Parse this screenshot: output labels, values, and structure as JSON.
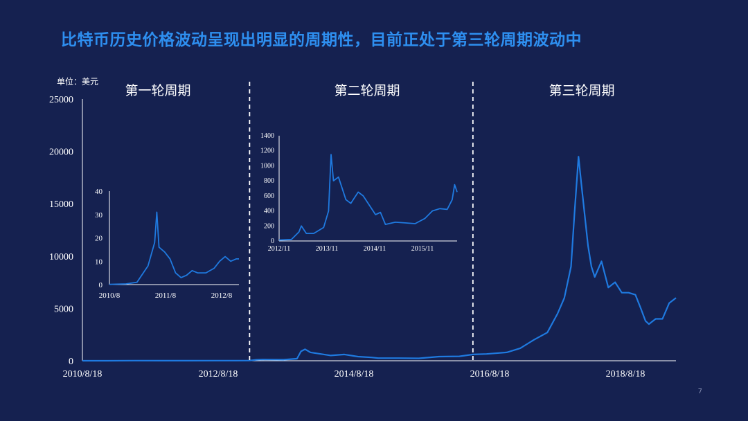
{
  "title": "比特币历史价格波动呈现出明显的周期性，目前正处于第三轮周期波动中",
  "page_number": "7",
  "colors": {
    "background": "#152150",
    "title": "#2e8ff0",
    "line": "#1f7ae0",
    "axis": "#ffffff"
  },
  "chart_data": [
    {
      "type": "line",
      "name": "main",
      "unit_label": "单位：美元",
      "x_ticks": [
        "2010/8/18",
        "2012/8/18",
        "2014/8/18",
        "2016/8/18",
        "2018/8/18"
      ],
      "y_ticks": [
        "0",
        "5000",
        "10000",
        "15000",
        "20000",
        "25000"
      ],
      "ylim": [
        0,
        25000
      ],
      "xlim": [
        2010.63,
        2019.4
      ],
      "cycle_labels": [
        "第一轮周期",
        "第二轮周期",
        "第三轮周期"
      ],
      "cycle_dividers": [
        2013.1,
        2016.4
      ],
      "x": [
        2010.63,
        2011.0,
        2011.4,
        2011.8,
        2012.2,
        2012.6,
        2012.9,
        2013.1,
        2013.2,
        2013.3,
        2013.4,
        2013.6,
        2013.8,
        2013.86,
        2013.92,
        2014.0,
        2014.1,
        2014.3,
        2014.5,
        2014.7,
        2014.9,
        2015.0,
        2015.3,
        2015.6,
        2015.9,
        2016.2,
        2016.4,
        2016.6,
        2016.9,
        2017.1,
        2017.3,
        2017.5,
        2017.65,
        2017.75,
        2017.85,
        2017.9,
        2017.96,
        2018.0,
        2018.05,
        2018.1,
        2018.15,
        2018.2,
        2018.3,
        2018.4,
        2018.5,
        2018.6,
        2018.7,
        2018.8,
        2018.88,
        2018.95,
        2019.0,
        2019.1,
        2019.2,
        2019.3,
        2019.4
      ],
      "y": [
        0,
        0,
        15,
        5,
        5,
        10,
        12,
        20,
        90,
        120,
        110,
        100,
        200,
        900,
        1100,
        800,
        700,
        500,
        600,
        400,
        320,
        250,
        250,
        230,
        400,
        420,
        600,
        650,
        800,
        1200,
        2000,
        2700,
        4500,
        6000,
        9000,
        14000,
        19500,
        17000,
        14000,
        11000,
        9000,
        8000,
        9500,
        7000,
        7500,
        6500,
        6500,
        6300,
        5000,
        3800,
        3500,
        4000,
        4000,
        5500,
        6000
      ]
    },
    {
      "type": "line",
      "name": "inset-cycle-1",
      "x_ticks": [
        "2010/8",
        "2011/8",
        "2012/8"
      ],
      "y_ticks": [
        "0",
        "10",
        "20",
        "30",
        "40"
      ],
      "ylim": [
        0,
        40
      ],
      "xlim": [
        2010.6,
        2012.95
      ],
      "x": [
        2010.6,
        2010.9,
        2011.1,
        2011.3,
        2011.42,
        2011.46,
        2011.5,
        2011.55,
        2011.6,
        2011.7,
        2011.8,
        2011.9,
        2012.0,
        2012.1,
        2012.2,
        2012.35,
        2012.5,
        2012.6,
        2012.7,
        2012.8,
        2012.9,
        2012.95
      ],
      "y": [
        0.1,
        0.3,
        1,
        8,
        18,
        31,
        16,
        15,
        14,
        11,
        5,
        3,
        4,
        6,
        5,
        5,
        7,
        10,
        12,
        10,
        11,
        11
      ]
    },
    {
      "type": "line",
      "name": "inset-cycle-2",
      "x_ticks": [
        "2012/11",
        "2013/11",
        "2014/11",
        "2015/11"
      ],
      "y_ticks": [
        "0",
        "200",
        "400",
        "600",
        "800",
        "1000",
        "1200",
        "1400"
      ],
      "ylim": [
        0,
        1400
      ],
      "xlim": [
        2012.85,
        2016.45
      ],
      "x": [
        2012.85,
        2013.1,
        2013.25,
        2013.3,
        2013.4,
        2013.55,
        2013.75,
        2013.85,
        2013.9,
        2013.95,
        2014.05,
        2014.2,
        2014.3,
        2014.45,
        2014.55,
        2014.7,
        2014.8,
        2014.9,
        2015.0,
        2015.2,
        2015.4,
        2015.6,
        2015.8,
        2015.95,
        2016.1,
        2016.25,
        2016.35,
        2016.4,
        2016.45
      ],
      "y": [
        12,
        20,
        120,
        200,
        100,
        100,
        180,
        400,
        1150,
        800,
        850,
        550,
        500,
        650,
        600,
        450,
        350,
        380,
        220,
        250,
        240,
        230,
        300,
        400,
        430,
        420,
        550,
        750,
        650
      ]
    }
  ]
}
